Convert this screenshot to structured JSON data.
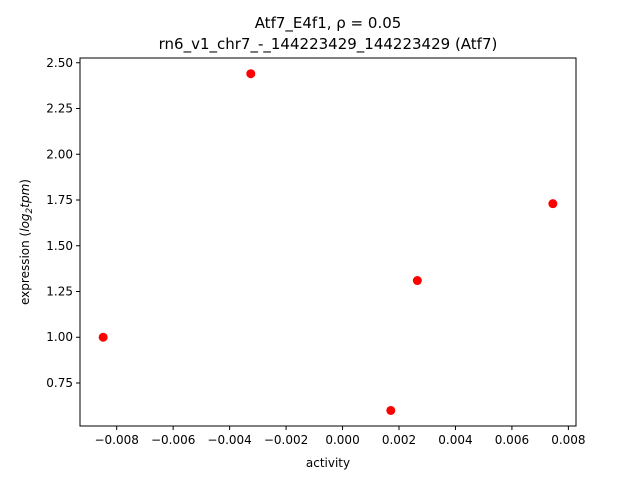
{
  "chart_data": {
    "type": "scatter",
    "title": "Atf7_E4f1, ρ = 0.05",
    "subtitle": "rn6_v1_chr7_-_144223429_144223429 (Atf7)",
    "xlabel": "activity",
    "ylabel": "expression (log2tpm)",
    "xlim": [
      -0.0093,
      0.00827
    ],
    "ylim": [
      0.515,
      2.526
    ],
    "xticks": [
      -0.008,
      -0.006,
      -0.004,
      -0.002,
      0.0,
      0.002,
      0.004,
      0.006,
      0.008
    ],
    "xtick_labels": [
      "−0.008",
      "−0.006",
      "−0.004",
      "−0.002",
      "0.000",
      "0.002",
      "0.004",
      "0.006",
      "0.008"
    ],
    "yticks": [
      0.75,
      1.0,
      1.25,
      1.5,
      1.75,
      2.0,
      2.25,
      2.5
    ],
    "ytick_labels": [
      "0.75",
      "1.00",
      "1.25",
      "1.50",
      "1.75",
      "2.00",
      "2.25",
      "2.50"
    ],
    "points": [
      {
        "x": -0.00848,
        "y": 1.0
      },
      {
        "x": -0.00325,
        "y": 2.44
      },
      {
        "x": 0.00171,
        "y": 0.6
      },
      {
        "x": 0.00265,
        "y": 1.31
      },
      {
        "x": 0.00745,
        "y": 1.73
      }
    ],
    "marker_color": "#ff0000",
    "grid": false,
    "legend": "none"
  }
}
